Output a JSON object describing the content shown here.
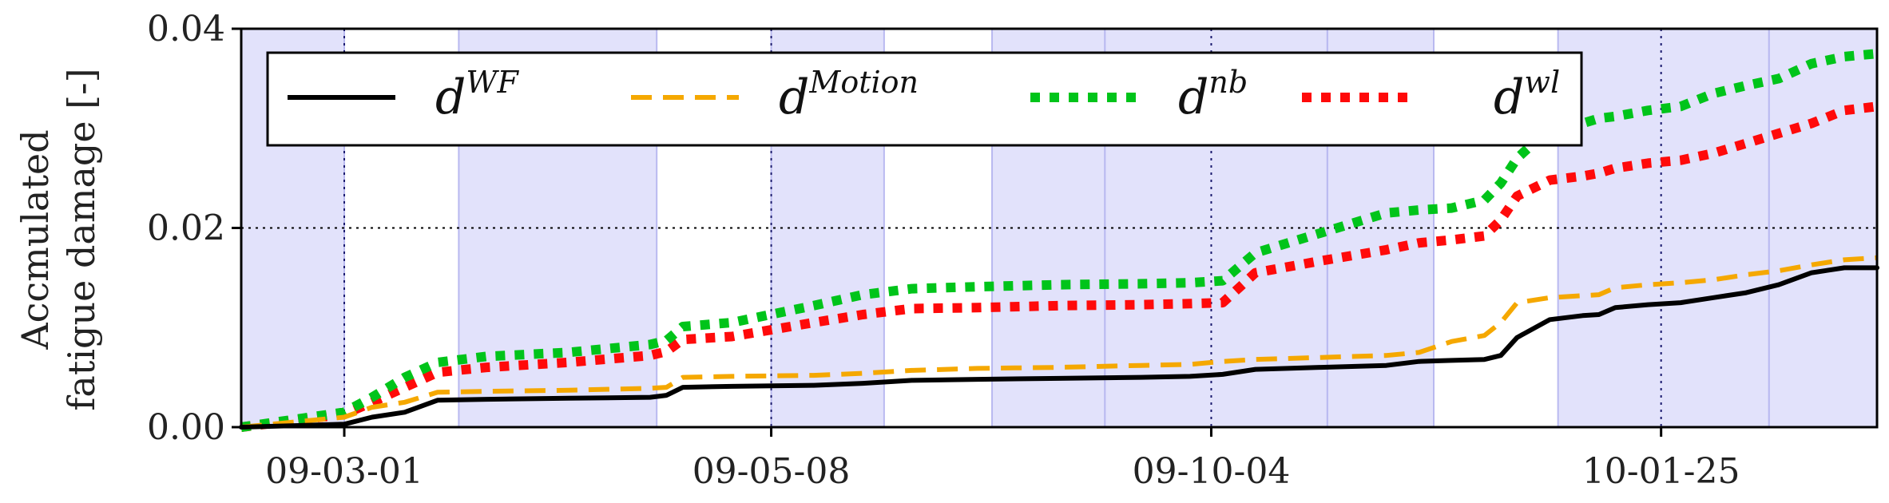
{
  "chart_data": {
    "type": "line",
    "title": "",
    "xlabel": "",
    "ylabel_lines": [
      "Accmulated",
      "fatigue damage [-]"
    ],
    "ylim": [
      0,
      0.04
    ],
    "y_ticks": [
      {
        "value": 0.0,
        "label": "0.00"
      },
      {
        "value": 0.02,
        "label": "0.02"
      },
      {
        "value": 0.04,
        "label": "0.04"
      }
    ],
    "xlim": [
      0,
      100
    ],
    "x_ticks": [
      {
        "x": 6.3,
        "label": "09-03-01"
      },
      {
        "x": 32.4,
        "label": "09-05-08"
      },
      {
        "x": 59.3,
        "label": "09-10-04"
      },
      {
        "x": 86.8,
        "label": "10-01-25"
      }
    ],
    "grid": "dotted at x ticks and y=0.02",
    "shaded_bands": [
      [
        0,
        6.3
      ],
      [
        13.3,
        25.4
      ],
      [
        32.4,
        39.3
      ],
      [
        45.9,
        52.8
      ],
      [
        52.8,
        66.4
      ],
      [
        66.4,
        72.9
      ],
      [
        80.5,
        93.4
      ],
      [
        93.4,
        100
      ]
    ],
    "band_color": "#e2e2fb",
    "legend_position": "top",
    "series": [
      {
        "name": "WF",
        "color": "#000000",
        "style": "solid",
        "x": [
          0,
          6.3,
          8,
          10,
          12,
          15,
          20,
          25,
          26,
          27,
          30,
          35,
          38,
          40,
          41,
          45,
          50,
          55,
          58,
          60,
          62,
          66,
          70,
          72,
          74,
          76,
          77,
          78,
          80,
          82,
          83,
          84,
          86,
          88,
          90,
          92,
          94,
          96,
          98,
          100
        ],
        "y": [
          0.0,
          0.0003,
          0.001,
          0.0015,
          0.0027,
          0.0028,
          0.0029,
          0.003,
          0.0032,
          0.004,
          0.0041,
          0.0042,
          0.0044,
          0.0046,
          0.0047,
          0.0048,
          0.0049,
          0.005,
          0.0051,
          0.0053,
          0.0058,
          0.006,
          0.0062,
          0.0066,
          0.0067,
          0.0068,
          0.0072,
          0.009,
          0.0108,
          0.0112,
          0.0113,
          0.012,
          0.0123,
          0.0125,
          0.013,
          0.0135,
          0.0143,
          0.0155,
          0.016,
          0.016
        ]
      },
      {
        "name": "Motion",
        "color": "#f5a800",
        "style": "dashed",
        "x": [
          0,
          6.3,
          8,
          10,
          12,
          15,
          20,
          25,
          26,
          27,
          30,
          35,
          38,
          40,
          41,
          45,
          50,
          55,
          58,
          60,
          62,
          66,
          70,
          72,
          74,
          76,
          77,
          78,
          80,
          82,
          83,
          84,
          86,
          88,
          90,
          92,
          94,
          96,
          98,
          100
        ],
        "y": [
          0.0,
          0.001,
          0.002,
          0.0025,
          0.0035,
          0.0036,
          0.0037,
          0.0039,
          0.004,
          0.005,
          0.0051,
          0.0052,
          0.0054,
          0.0056,
          0.0057,
          0.0059,
          0.006,
          0.0062,
          0.0063,
          0.0066,
          0.0068,
          0.007,
          0.0072,
          0.0075,
          0.0086,
          0.0092,
          0.0105,
          0.0125,
          0.013,
          0.0132,
          0.0133,
          0.014,
          0.0143,
          0.0145,
          0.0148,
          0.0153,
          0.0157,
          0.0163,
          0.0168,
          0.017
        ]
      },
      {
        "name": "nb",
        "color": "#00c41a",
        "style": "dotted",
        "x": [
          0,
          6.3,
          8,
          10,
          12,
          15,
          20,
          25,
          26,
          27,
          30,
          35,
          38,
          40,
          41,
          45,
          50,
          55,
          58,
          60,
          62,
          66,
          70,
          72,
          74,
          76,
          77,
          78,
          80,
          82,
          83,
          84,
          86,
          88,
          90,
          92,
          94,
          96,
          98,
          100
        ],
        "y": [
          0.0,
          0.0015,
          0.003,
          0.005,
          0.0065,
          0.0071,
          0.0075,
          0.0083,
          0.0087,
          0.0101,
          0.0105,
          0.0122,
          0.0133,
          0.0137,
          0.0139,
          0.0141,
          0.0143,
          0.0144,
          0.0145,
          0.0147,
          0.0175,
          0.0195,
          0.0215,
          0.0218,
          0.022,
          0.0228,
          0.0245,
          0.027,
          0.03,
          0.0305,
          0.031,
          0.0312,
          0.0318,
          0.0322,
          0.0335,
          0.0343,
          0.035,
          0.0365,
          0.0372,
          0.0375
        ]
      },
      {
        "name": "wl",
        "color": "#ff0a0a",
        "style": "dotted",
        "x": [
          0,
          6.3,
          8,
          10,
          12,
          15,
          20,
          25,
          26,
          27,
          30,
          35,
          38,
          40,
          41,
          45,
          50,
          55,
          58,
          60,
          62,
          66,
          70,
          72,
          74,
          76,
          77,
          78,
          80,
          82,
          83,
          84,
          86,
          88,
          90,
          92,
          94,
          96,
          98,
          100
        ],
        "y": [
          0.0,
          0.0013,
          0.0025,
          0.004,
          0.0055,
          0.006,
          0.0065,
          0.0072,
          0.0076,
          0.0088,
          0.0091,
          0.0105,
          0.0113,
          0.0117,
          0.0119,
          0.012,
          0.0122,
          0.0123,
          0.0124,
          0.0125,
          0.0155,
          0.0167,
          0.0178,
          0.0185,
          0.0188,
          0.0192,
          0.0208,
          0.0232,
          0.0248,
          0.0252,
          0.0255,
          0.026,
          0.0265,
          0.0268,
          0.0275,
          0.0285,
          0.0295,
          0.0305,
          0.0318,
          0.0322
        ]
      }
    ]
  }
}
